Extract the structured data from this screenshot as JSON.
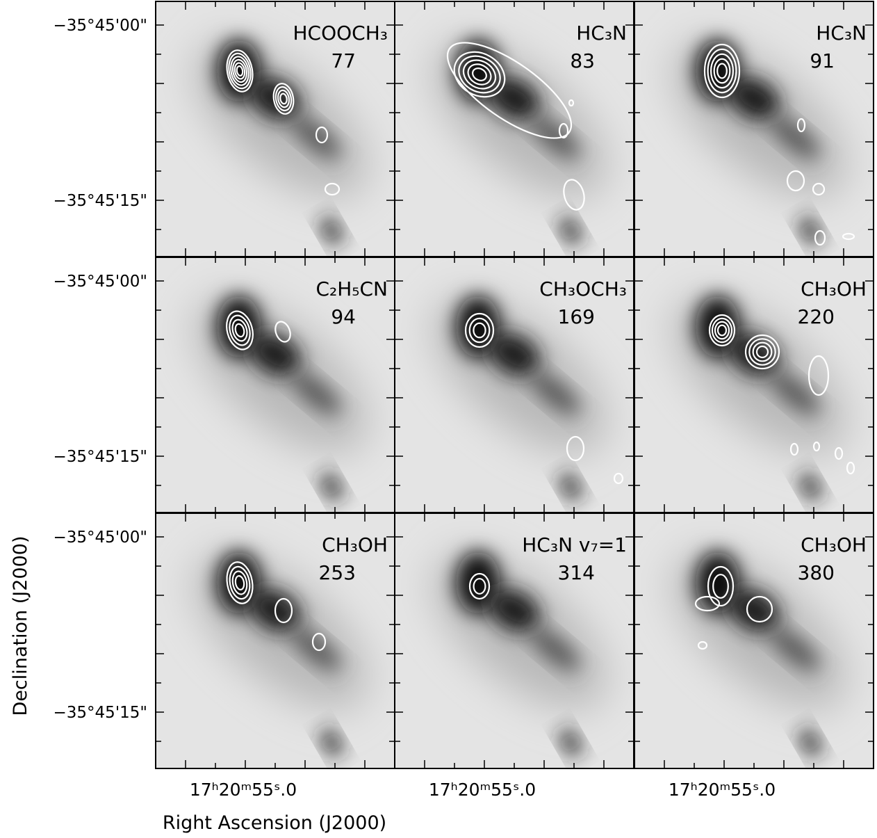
{
  "figure": {
    "x_axis_label": "Right Ascension (J2000)",
    "y_axis_label": "Declination (J2000)",
    "dec_ticks": [
      "−35°45'00\"",
      "−35°45'15\""
    ],
    "ra_tick": "17ʰ20ᵐ55ˢ.0",
    "panels": [
      {
        "molecule": "HCOOCH₃",
        "energy": 77
      },
      {
        "molecule": "HC₃N",
        "energy": 83
      },
      {
        "molecule": "HC₃N",
        "energy": 91
      },
      {
        "molecule": "C₂H₅CN",
        "energy": 94
      },
      {
        "molecule": "CH₃OCH₃",
        "energy": 169
      },
      {
        "molecule": "CH₃OH",
        "energy": 220
      },
      {
        "molecule": "CH₃OH",
        "energy": 253
      },
      {
        "molecule": "HC₃N v₇=1",
        "energy": 314
      },
      {
        "molecule": "CH₃OH",
        "energy": 380
      }
    ]
  }
}
